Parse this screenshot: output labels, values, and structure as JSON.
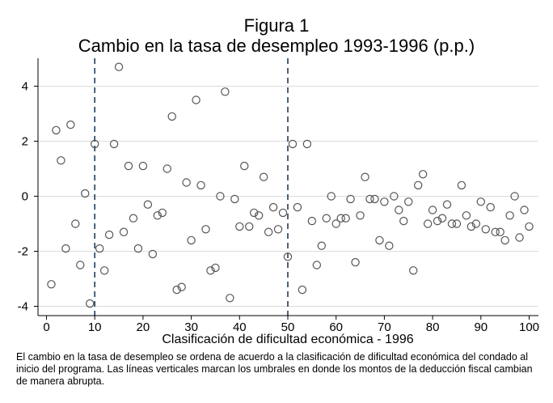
{
  "figure": {
    "title_line1": "Figura 1",
    "title_line2": "Cambio en la tasa de desempleo 1993-1996 (p.p.)",
    "caption": "El cambio en la tasa de desempleo se ordena de acuerdo a la clasificación de dificultad económica del condado al inicio del programa. Las líneas verticales marcan los umbrales en donde los montos de la deducción fiscal cambian de manera abrupta."
  },
  "chart_data": {
    "type": "scatter",
    "title": "Figura 1 — Cambio en la tasa de desempleo 1993-1996 (p.p.)",
    "xlabel": "Clasificación de dificultad económica - 1996",
    "ylabel": "",
    "xlim": [
      0,
      100
    ],
    "ylim": [
      -4.2,
      5.0
    ],
    "xticks": [
      0,
      10,
      20,
      30,
      40,
      50,
      60,
      70,
      80,
      90,
      100
    ],
    "yticks": [
      -4,
      -2,
      0,
      2,
      4
    ],
    "grid": "horizontal",
    "marker": "hollow-circle",
    "vertical_lines": [
      10,
      50
    ],
    "colors": {
      "marker": "#555555",
      "vline": "#1f3d5c",
      "grid": "#dcdcdc",
      "axis": "#000000"
    },
    "x": [
      1,
      2,
      3,
      4,
      5,
      6,
      7,
      8,
      9,
      10,
      11,
      12,
      13,
      14,
      15,
      16,
      17,
      18,
      19,
      20,
      21,
      22,
      23,
      24,
      25,
      26,
      27,
      28,
      29,
      30,
      31,
      32,
      33,
      34,
      35,
      36,
      37,
      38,
      39,
      40,
      41,
      42,
      43,
      44,
      45,
      46,
      47,
      48,
      49,
      50,
      51,
      52,
      53,
      54,
      55,
      56,
      57,
      58,
      59,
      60,
      61,
      62,
      63,
      64,
      65,
      66,
      67,
      68,
      69,
      70,
      71,
      72,
      73,
      74,
      75,
      76,
      77,
      78,
      79,
      80,
      81,
      82,
      83,
      84,
      85,
      86,
      87,
      88,
      89,
      90,
      91,
      92,
      93,
      94,
      95,
      96,
      97,
      98,
      99,
      100
    ],
    "y": [
      -3.2,
      2.4,
      1.3,
      -1.9,
      2.6,
      -1.0,
      -2.5,
      0.1,
      -3.9,
      1.9,
      -1.9,
      -2.7,
      -1.4,
      1.9,
      4.7,
      -1.3,
      1.1,
      -0.8,
      -1.9,
      1.1,
      -0.3,
      -2.1,
      -0.7,
      -0.6,
      1.0,
      2.9,
      -3.4,
      -3.3,
      0.5,
      -1.6,
      3.5,
      0.4,
      -1.2,
      -2.7,
      -2.6,
      0.0,
      3.8,
      -3.7,
      -0.1,
      -1.1,
      1.1,
      -1.1,
      -0.6,
      -0.7,
      0.7,
      -1.3,
      -0.4,
      -1.2,
      -0.6,
      -2.2,
      1.9,
      -0.4,
      -3.4,
      1.9,
      -0.9,
      -2.5,
      -1.8,
      -0.8,
      0.0,
      -1.0,
      -0.8,
      -0.8,
      -0.1,
      -2.4,
      -0.7,
      0.7,
      -0.1,
      -0.1,
      -1.6,
      -0.2,
      -1.8,
      0.0,
      -0.5,
      -0.9,
      -0.2,
      -2.7,
      0.4,
      0.8,
      -1.0,
      -0.5,
      -0.9,
      -0.8,
      -0.3,
      -1.0,
      -1.0,
      0.4,
      -0.7,
      -1.1,
      -1.0,
      -0.2,
      -1.2,
      -0.4,
      -1.3,
      -1.3,
      -1.6,
      -0.7,
      0.0,
      -1.5,
      -0.5,
      -1.1
    ]
  }
}
